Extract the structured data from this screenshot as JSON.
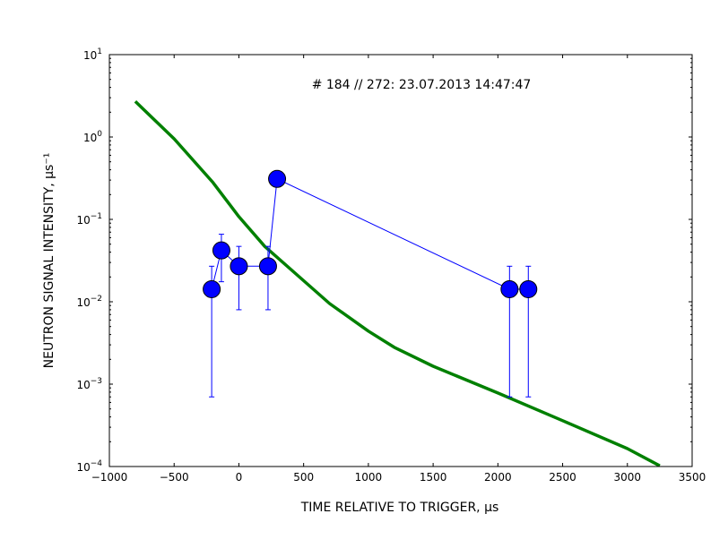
{
  "chart_data": {
    "type": "scatter",
    "title": "# 184 // 272: 23.07.2013 14:47:47",
    "xlabel": "TIME RELATIVE TO TRIGGER, μs",
    "ylabel": "NEUTRON SIGNAL INTENSITY, μs⁻¹",
    "xlim": [
      -1000,
      3500
    ],
    "ylim_log10": [
      -4,
      1
    ],
    "yscale": "log",
    "grid": false,
    "x_ticks": [
      -1000,
      -500,
      0,
      500,
      1000,
      1500,
      2000,
      2500,
      3000,
      3500
    ],
    "x_tick_labels": [
      "−1000",
      "−500",
      "0",
      "500",
      "1000",
      "1500",
      "2000",
      "2500",
      "3000",
      "3500"
    ],
    "y_tick_exponents": [
      -4,
      -3,
      -2,
      -1,
      0,
      1
    ],
    "series": [
      {
        "kind": "points-with-errorbars",
        "color": "#0000ff",
        "points": [
          {
            "x": -210,
            "y": 0.0142,
            "yerr_low": 0.0007,
            "yerr_high": 0.027
          },
          {
            "x": -135,
            "y": 0.042,
            "yerr_low": 0.0175,
            "yerr_high": 0.066
          },
          {
            "x": 0,
            "y": 0.027,
            "yerr_low": 0.008,
            "yerr_high": 0.047
          },
          {
            "x": 225,
            "y": 0.027,
            "yerr_low": 0.008,
            "yerr_high": 0.047
          },
          {
            "x": 295,
            "y": 0.31,
            "yerr_low": null,
            "yerr_high": null
          },
          {
            "x": 2090,
            "y": 0.0142,
            "yerr_low": 0.0007,
            "yerr_high": 0.027
          },
          {
            "x": 2235,
            "y": 0.0142,
            "yerr_low": 0.0007,
            "yerr_high": 0.027
          }
        ]
      },
      {
        "kind": "curve",
        "color": "#008000",
        "points": [
          {
            "x": -800,
            "y": 2.7
          },
          {
            "x": -500,
            "y": 0.95
          },
          {
            "x": -200,
            "y": 0.28
          },
          {
            "x": 0,
            "y": 0.108
          },
          {
            "x": 200,
            "y": 0.047
          },
          {
            "x": 500,
            "y": 0.018
          },
          {
            "x": 700,
            "y": 0.0095
          },
          {
            "x": 1000,
            "y": 0.0044
          },
          {
            "x": 1200,
            "y": 0.0028
          },
          {
            "x": 1500,
            "y": 0.00165
          },
          {
            "x": 2000,
            "y": 0.00078
          },
          {
            "x": 2500,
            "y": 0.00036
          },
          {
            "x": 3000,
            "y": 0.000165
          },
          {
            "x": 3250,
            "y": 0.000102
          }
        ]
      }
    ]
  }
}
